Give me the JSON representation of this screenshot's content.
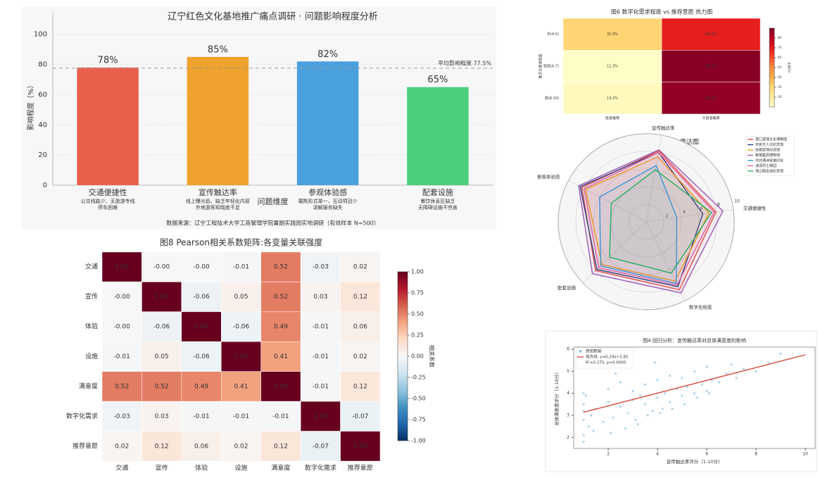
{
  "chart_data": [
    {
      "type": "bar",
      "title": "辽宁红色文化基地推广痛点调研 · 问题影响程度分析",
      "categories": [
        "交通便捷性",
        "宣传触达率",
        "参观体验感",
        "配套设施"
      ],
      "descriptions": [
        [
          "公交线路少、无旅游专线",
          "停车困难"
        ],
        [
          "线上曝光低、缺乏年轻化内容",
          "外地游客知晓度不足"
        ],
        [
          "展陈形式单一、互动项目少",
          "讲解服务缺失"
        ],
        [
          "餐饮休息区缺乏",
          "无障碍设施不完善"
        ]
      ],
      "values": [
        78,
        85,
        82,
        65
      ],
      "value_labels": [
        "78%",
        "85%",
        "82%",
        "65%"
      ],
      "colors": [
        "#e8604c",
        "#f0a22e",
        "#4aa0dc",
        "#4ccf7c"
      ],
      "xlabel": "问题维度",
      "ylabel": "影响程度（%）",
      "ylim": [
        0,
        105
      ],
      "yticks": [
        0,
        20,
        40,
        60,
        80,
        100
      ],
      "grid": true,
      "reference": {
        "value": 77.5,
        "label": "平均影响程度 77.5%"
      },
      "source": "数据来源：辽宁工程技术大学工商管理学院暑期实践团实地调研（有效样本 N=500）"
    },
    {
      "type": "heatmap",
      "title": "图8 Pearson相关系数矩阵:各变量关联强度",
      "rows": [
        "交通",
        "宣传",
        "体验",
        "设施",
        "满意度",
        "数字化需求",
        "推荐意愿"
      ],
      "columns": [
        "交通",
        "宣传",
        "体验",
        "设施",
        "满意度",
        "数字化需求",
        "推荐意愿"
      ],
      "values": [
        [
          1,
          0,
          0,
          -0.01,
          0.52,
          -0.03,
          0.02
        ],
        [
          0,
          1,
          -0.06,
          0.05,
          0.52,
          0.03,
          0.12
        ],
        [
          0,
          -0.06,
          1,
          -0.06,
          0.49,
          -0.01,
          0.06
        ],
        [
          -0.01,
          0.05,
          -0.06,
          1,
          0.41,
          -0.01,
          0.02
        ],
        [
          0.52,
          0.52,
          0.49,
          0.41,
          1,
          -0.01,
          0.12
        ],
        [
          -0.03,
          0.03,
          -0.01,
          -0.01,
          -0.01,
          1,
          -0.07
        ],
        [
          0.02,
          0.12,
          0.06,
          0.02,
          0.12,
          -0.07,
          1
        ]
      ],
      "value_labels": [
        [
          "1.00",
          "-0.00",
          "-0.00",
          "-0.01",
          "0.52",
          "-0.03",
          "0.02"
        ],
        [
          "-0.00",
          "1.00",
          "-0.06",
          "0.05",
          "0.52",
          "0.03",
          "0.12"
        ],
        [
          "-0.00",
          "-0.06",
          "1.00",
          "-0.06",
          "0.49",
          "-0.01",
          "0.06"
        ],
        [
          "-0.01",
          "0.05",
          "-0.06",
          "1.00",
          "0.41",
          "-0.01",
          "0.02"
        ],
        [
          "0.52",
          "0.52",
          "0.49",
          "0.41",
          "1.00",
          "-0.01",
          "0.12"
        ],
        [
          "-0.03",
          "0.03",
          "-0.01",
          "-0.01",
          "-0.01",
          "1.00",
          "-0.07"
        ],
        [
          "0.02",
          "0.12",
          "0.06",
          "0.02",
          "0.12",
          "-0.07",
          "1.00"
        ]
      ],
      "colormap": "RdBu_r",
      "clim": [
        -1,
        1
      ],
      "cticks": [
        {
          "value": 1,
          "label": "1.00"
        },
        {
          "value": 0.75,
          "label": "0.75"
        },
        {
          "value": 0.5,
          "label": "0.50"
        },
        {
          "value": 0.25,
          "label": "0.25"
        },
        {
          "value": 0,
          "label": "0.00"
        },
        {
          "value": -0.25,
          "label": "-0.25"
        },
        {
          "value": -0.5,
          "label": "-0.50"
        },
        {
          "value": -0.75,
          "label": "-0.75"
        },
        {
          "value": -1,
          "label": "-1.00"
        }
      ],
      "clabel": "相关系数"
    },
    {
      "type": "heatmap",
      "title": "图6 数字化需求程度 vs 推荐意愿 热力图",
      "rows": [
        "中(4-5)",
        "较高(6-7)",
        "高(8-10)"
      ],
      "columns": [
        "愿意推荐",
        "不愿意推荐"
      ],
      "ylabel": "数字化需求程度",
      "values": [
        [
          31.0,
          69.0
        ],
        [
          11.3,
          88.7
        ],
        [
          13.2,
          86.8
        ]
      ],
      "value_labels": [
        [
          "31.0%",
          "69.0%"
        ],
        [
          "11.3%",
          "88.7%"
        ],
        [
          "13.2%",
          "86.8%"
        ]
      ],
      "colormap": "YlOrRd",
      "clim": [
        10,
        90
      ],
      "cticks": [
        20,
        30,
        40,
        50,
        60,
        70,
        80
      ],
      "clabel": "比例(%)"
    },
    {
      "type": "radar",
      "title": "红色景点问题综合评估·雷达图",
      "axes": [
        "宣传触达率",
        "交通便捷性",
        "数字化程度",
        "配套设施",
        "参观体验感"
      ],
      "rlim": [
        0,
        10
      ],
      "rticks": [
        2,
        4,
        6,
        8,
        10
      ],
      "legend": "upper right",
      "series": [
        {
          "name": "营口雷锋文化博物馆",
          "color": "#e74c3c",
          "values": [
            8.2,
            8.0,
            8.6,
            8.0,
            8.3
          ]
        },
        {
          "name": "阜新万人坑纪念馆",
          "color": "#2c3e80",
          "values": [
            8.0,
            6.5,
            8.2,
            7.8,
            8.5
          ]
        },
        {
          "name": "抚顺雷锋纪念馆",
          "color": "#f39c12",
          "values": [
            7.5,
            7.2,
            7.5,
            7.0,
            7.8
          ]
        },
        {
          "name": "鞍钢集团博物馆",
          "color": "#9b59b6",
          "values": [
            8.3,
            8.8,
            9.0,
            8.5,
            8.7
          ]
        },
        {
          "name": "中共满洲省委旧址",
          "color": "#3498db",
          "values": [
            6.5,
            3.5,
            7.8,
            7.2,
            6.0
          ]
        },
        {
          "name": "凌源烈士陵园",
          "color": "#e0609a",
          "values": [
            8.0,
            7.8,
            8.0,
            7.5,
            8.0
          ]
        },
        {
          "name": "塔山阻击战纪念馆",
          "color": "#27ae60",
          "values": [
            6.0,
            7.5,
            6.5,
            5.8,
            4.5
          ]
        }
      ]
    },
    {
      "type": "scatter",
      "title": "图4 回归分析：宣传触达率对总体满意度的影响",
      "xlabel": "宣传触达率评分（1-10分）",
      "ylabel": "总体满意度评分（1-10分）",
      "xlim": [
        0.6,
        10.4
      ],
      "ylim": [
        1.5,
        6.1
      ],
      "xticks": [
        2,
        4,
        6,
        8,
        10
      ],
      "yticks": [
        2,
        3,
        4,
        5,
        6
      ],
      "fit_note": "R²=0.275, p=0.0000",
      "series": [
        {
          "name": "原始数据",
          "color": "#7ab8e0",
          "style": "points",
          "x": [
            1,
            1,
            1,
            1,
            1,
            1.2,
            1.3,
            1.5,
            1.8,
            2,
            2,
            2.2,
            2.5,
            2.5,
            2.8,
            3,
            3,
            3.2,
            3.3,
            3.5,
            3.5,
            3.8,
            4,
            4,
            4.2,
            4.3,
            4.5,
            4.5,
            4.8,
            5,
            5,
            5.2,
            5.5,
            5.5,
            5.8,
            6,
            6,
            6.2,
            6.5,
            6.8,
            7,
            7.2,
            7.5,
            8,
            8.5,
            9,
            1,
            1.4,
            2.1,
            2.7,
            3.1,
            3.6,
            4.1,
            4.6,
            5.1,
            5.6,
            6.1,
            2.3,
            3.9,
            1.1
          ],
          "values": [
            2.1,
            2.8,
            3.2,
            3.5,
            4.0,
            2.5,
            3.0,
            3.3,
            2.7,
            3.6,
            4.2,
            2.9,
            3.4,
            4.5,
            3.1,
            3.7,
            4.1,
            2.6,
            3.9,
            3.5,
            4.4,
            3.2,
            3.8,
            4.6,
            3.3,
            4.0,
            3.6,
            4.8,
            4.2,
            3.9,
            4.7,
            4.3,
            4.0,
            5.0,
            4.4,
            4.1,
            5.2,
            4.6,
            4.5,
            4.9,
            5.3,
            4.7,
            5.1,
            5.0,
            5.4,
            5.8,
            1.8,
            2.3,
            2.2,
            2.4,
            2.8,
            3.0,
            3.1,
            3.3,
            3.5,
            3.8,
            4.0,
            4.9,
            5.4,
            3.9
          ]
        },
        {
          "name": "拟合线: y=0.29x+2.85",
          "color": "#d94030",
          "style": "line",
          "x": [
            1,
            10
          ],
          "values": [
            3.14,
            5.75
          ]
        }
      ]
    }
  ]
}
